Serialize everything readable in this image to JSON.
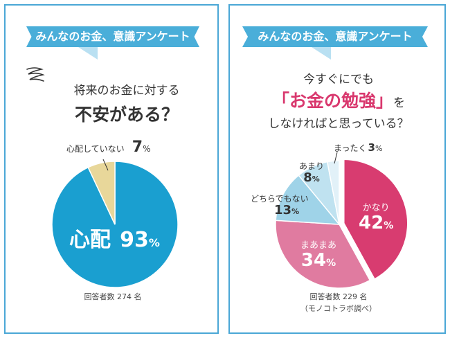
{
  "chart_data": [
    {
      "type": "pie",
      "header": "みんなのお金、意識アンケート",
      "question_line1": "将来のお金に対する",
      "question_line2": "不安がある？",
      "slices": [
        {
          "name": "心配",
          "value": 93,
          "color": "#1a9fd0"
        },
        {
          "name": "心配していない",
          "value": 7,
          "color": "#e8d79a"
        }
      ],
      "percent_sign": "%",
      "footnote": "回答者数 274 名"
    },
    {
      "type": "pie",
      "header": "みんなのお金、意識アンケート",
      "question_line1": "今すぐにでも",
      "question_line2": "「お金の勉強」",
      "question_line2_suffix": "を",
      "question_line3": "しなければと思っている？",
      "slices": [
        {
          "name": "かなり",
          "value": 42,
          "color": "#d83c70"
        },
        {
          "name": "まあまあ",
          "value": 34,
          "color": "#e07ba0"
        },
        {
          "name": "どちらでもない",
          "value": 13,
          "color": "#9fd3e8"
        },
        {
          "name": "あまり",
          "value": 8,
          "color": "#bfe2f0"
        },
        {
          "name": "まったく",
          "value": 3,
          "color": "#e2f1f8"
        }
      ],
      "percent_sign": "%",
      "footnote": "回答者数 229 名",
      "footnote2": "（モノコトラボ調べ）"
    }
  ]
}
